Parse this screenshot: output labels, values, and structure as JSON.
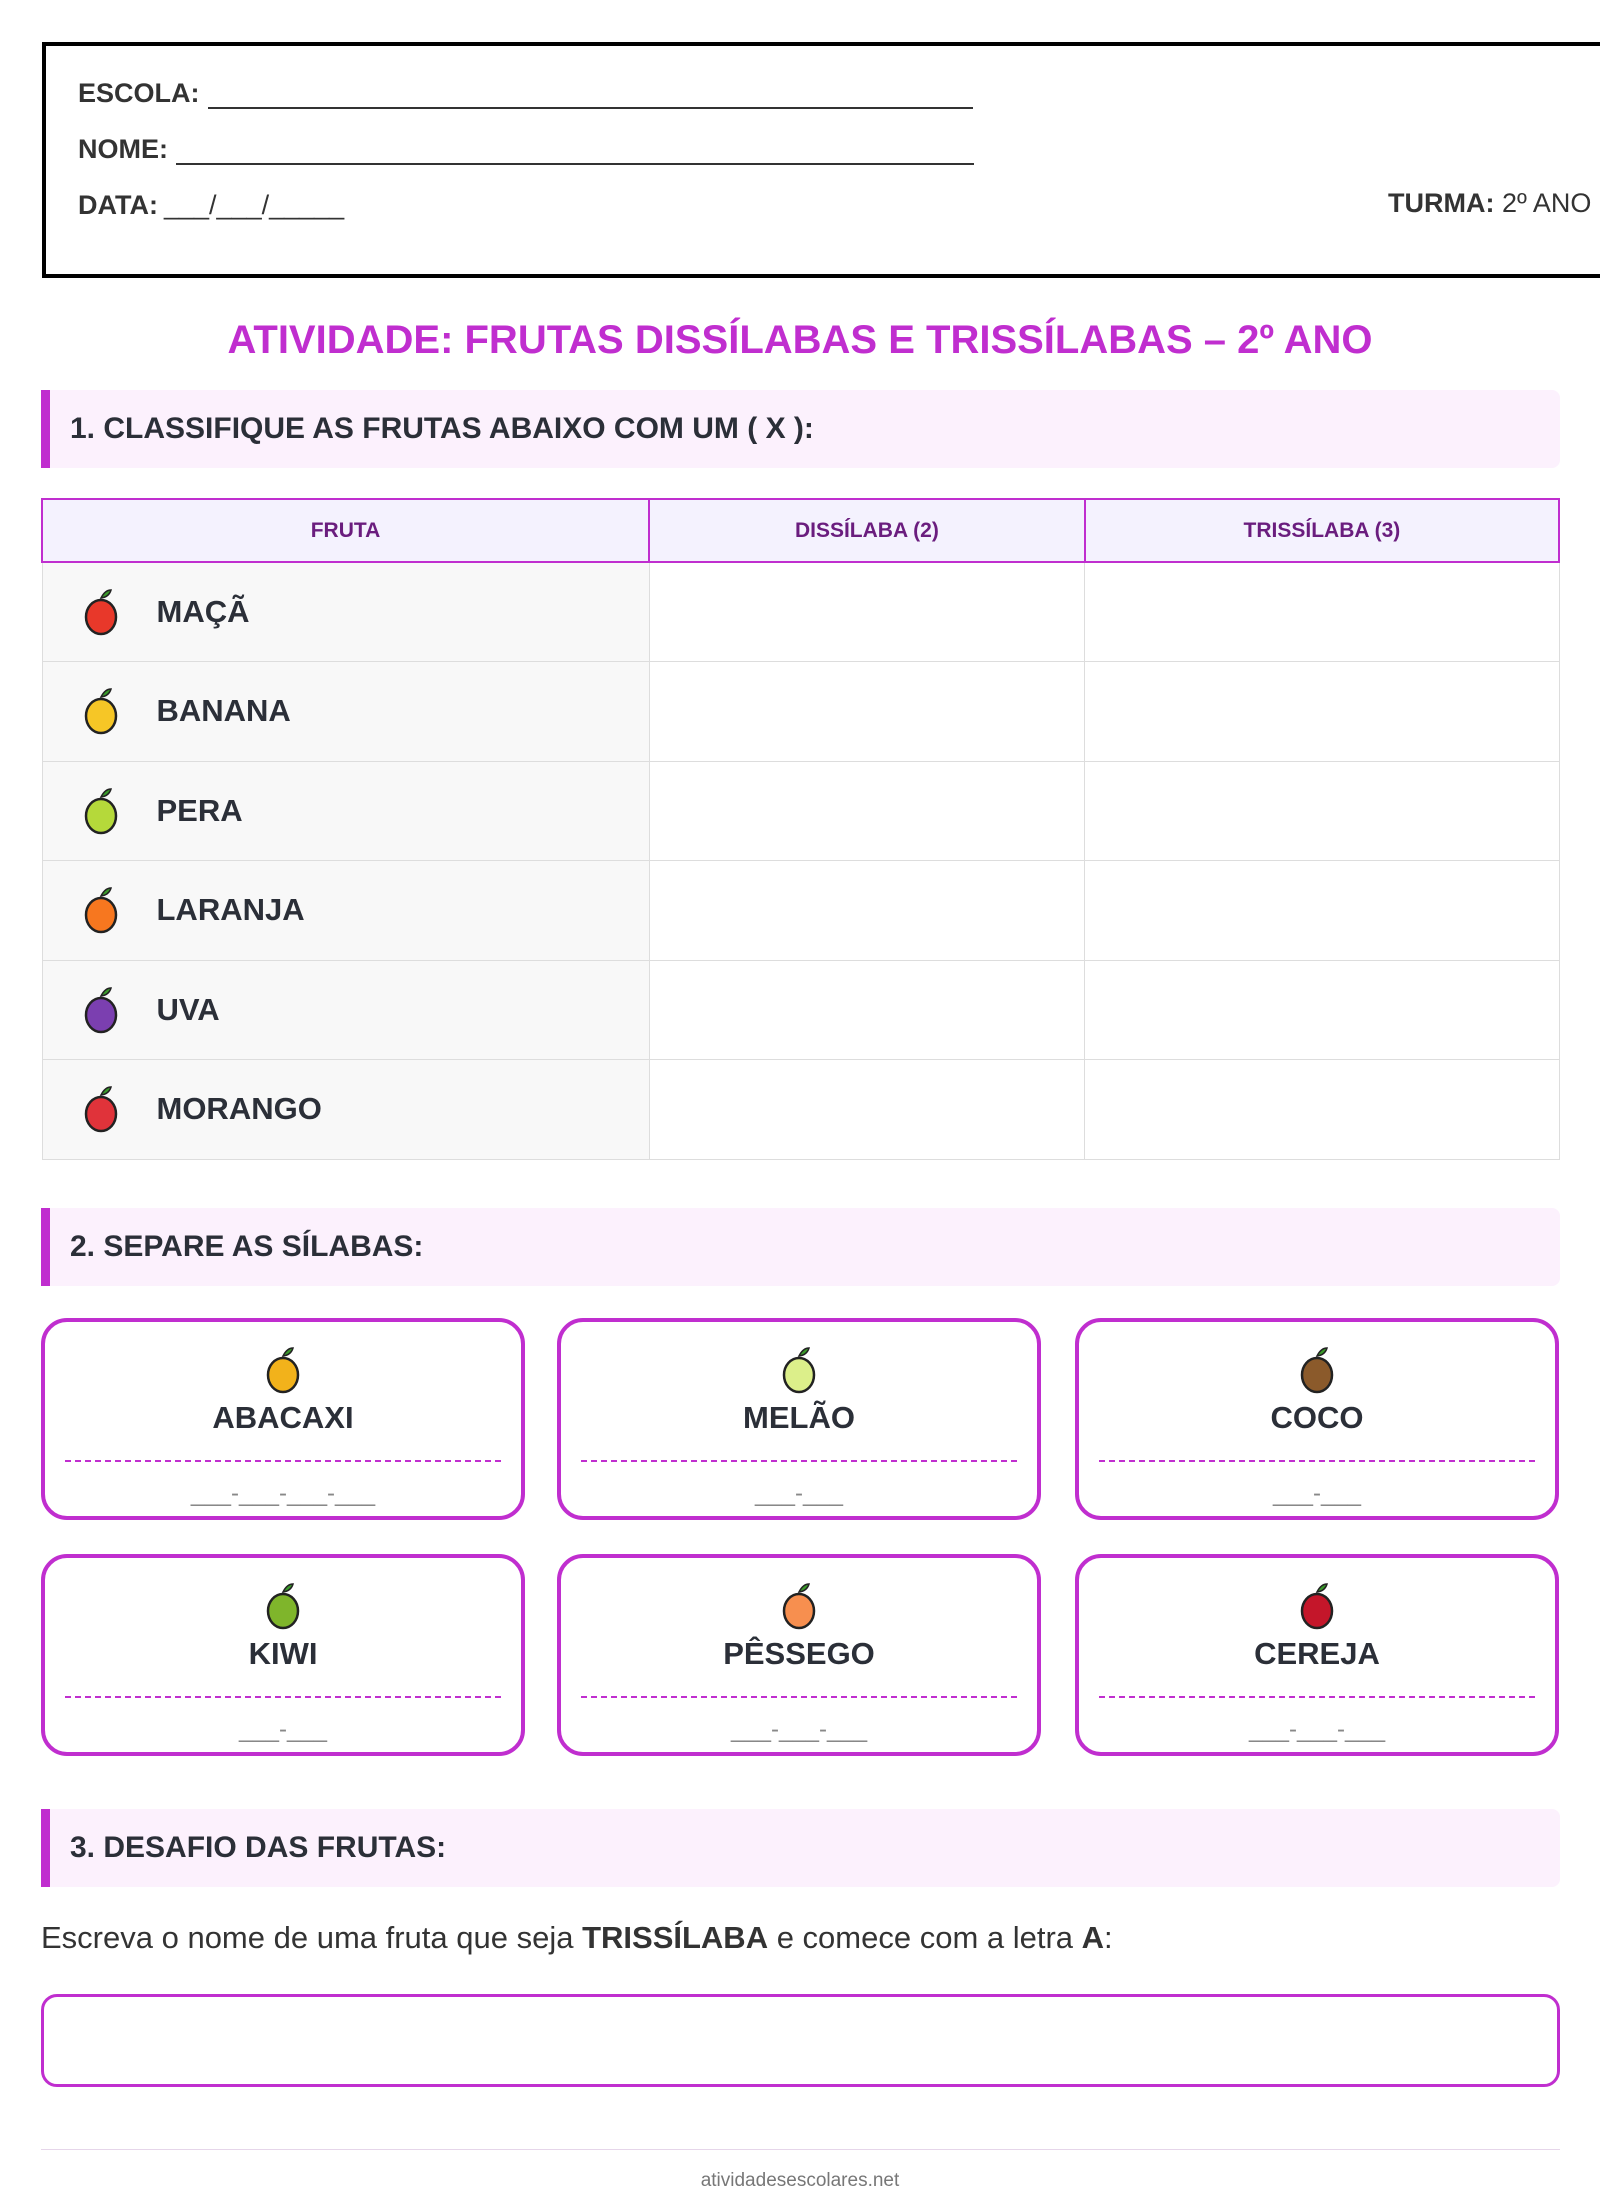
{
  "header": {
    "escola_label": "ESCOLA:",
    "nome_label": "NOME:",
    "data_label": "DATA:",
    "data_blank": "___/___/_____",
    "turma_label": "TURMA:",
    "turma_value": "2º ANO"
  },
  "title": "ATIVIDADE: FRUTAS DISSÍLABAS E TRISSÍLABAS – 2º ANO",
  "section1": {
    "heading": "1. CLASSIFIQUE AS FRUTAS ABAIXO COM UM ( X ):",
    "columns": [
      "FRUTA",
      "DISSÍLABA (2)",
      "TRISSÍLABA (3)"
    ],
    "rows": [
      {
        "name": "MAÇÃ",
        "icon": "apple-icon"
      },
      {
        "name": "BANANA",
        "icon": "banana-icon"
      },
      {
        "name": "PERA",
        "icon": "pear-icon"
      },
      {
        "name": "LARANJA",
        "icon": "orange-icon"
      },
      {
        "name": "UVA",
        "icon": "grapes-icon"
      },
      {
        "name": "MORANGO",
        "icon": "strawberry-icon"
      }
    ]
  },
  "section2": {
    "heading": "2. SEPARE AS SÍLABAS:",
    "cards": [
      {
        "name": "ABACAXI",
        "icon": "pineapple-icon",
        "blank": "___-___-___-___"
      },
      {
        "name": "MELÃO",
        "icon": "melon-icon",
        "blank": "___-___"
      },
      {
        "name": "COCO",
        "icon": "coconut-icon",
        "blank": "___-___"
      },
      {
        "name": "KIWI",
        "icon": "kiwi-icon",
        "blank": "___-___"
      },
      {
        "name": "PÊSSEGO",
        "icon": "peach-icon",
        "blank": "___-___-___"
      },
      {
        "name": "CEREJA",
        "icon": "cherries-icon",
        "blank": "___-___-___"
      }
    ]
  },
  "section3": {
    "heading": "3. DESAFIO DAS FRUTAS:",
    "q_part1": "Escreva o nome de uma fruta que seja ",
    "q_bold1": "TRISSÍLABA",
    "q_part2": " e comece com a letra ",
    "q_bold2": "A",
    "q_part3": ":",
    "answer_value": ""
  },
  "footer": "atividadesescolares.net",
  "colors": {
    "accent": "#c02ecf",
    "header_text": "#6a1d7e",
    "section_bg": "#fcf1fd"
  }
}
